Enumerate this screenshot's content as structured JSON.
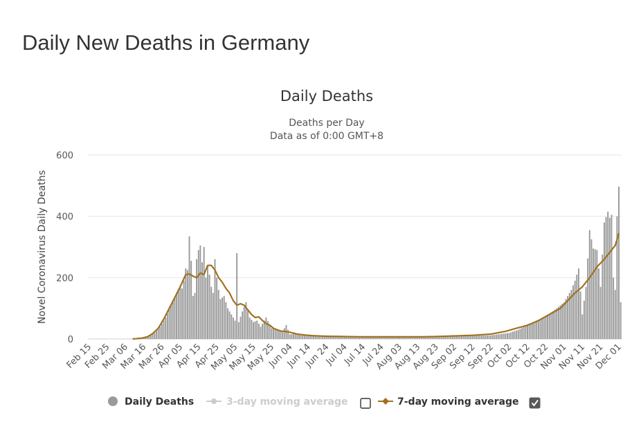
{
  "page": {
    "title": "Daily New Deaths in Germany"
  },
  "colors": {
    "bars": "#9a9a9a",
    "avg7": "#a0711f",
    "avg3_disabled": "#cccccc",
    "grid": "#e6e6e6",
    "text": "#333333"
  },
  "chart_data": {
    "type": "bar",
    "title": "Daily Deaths",
    "subtitle": [
      "Deaths per Day",
      "Data as of 0:00 GMT+8"
    ],
    "xlabel": "",
    "ylabel": "Novel Coronavirus Daily Deaths",
    "ylim": [
      0,
      600
    ],
    "yticks": [
      0,
      200,
      400,
      600
    ],
    "x_start": "2020-02-15",
    "x_end": "2020-12-02",
    "x_ticks": [
      "Feb 15",
      "Feb 25",
      "Mar 06",
      "Mar 16",
      "Mar 26",
      "Apr 05",
      "Apr 15",
      "Apr 25",
      "May 05",
      "May 15",
      "May 25",
      "Jun 04",
      "Jun 14",
      "Jun 24",
      "Jul 04",
      "Jul 14",
      "Jul 24",
      "Aug 03",
      "Aug 13",
      "Aug 23",
      "Sep 02",
      "Sep 12",
      "Sep 22",
      "Oct 02",
      "Oct 12",
      "Oct 22",
      "Nov 01",
      "Nov 11",
      "Nov 21",
      "Dec 01"
    ],
    "daily_anchors": [
      [
        0,
        0
      ],
      [
        20,
        0
      ],
      [
        25,
        1
      ],
      [
        30,
        3
      ],
      [
        33,
        8
      ],
      [
        36,
        20
      ],
      [
        39,
        40
      ],
      [
        42,
        70
      ],
      [
        45,
        110
      ],
      [
        48,
        150
      ],
      [
        50,
        175
      ],
      [
        51,
        165
      ],
      [
        52,
        190
      ],
      [
        53,
        230
      ],
      [
        54,
        225
      ],
      [
        55,
        335
      ],
      [
        56,
        255
      ],
      [
        57,
        140
      ],
      [
        58,
        150
      ],
      [
        59,
        260
      ],
      [
        60,
        290
      ],
      [
        61,
        305
      ],
      [
        62,
        250
      ],
      [
        63,
        300
      ],
      [
        64,
        200
      ],
      [
        65,
        240
      ],
      [
        66,
        210
      ],
      [
        67,
        170
      ],
      [
        68,
        150
      ],
      [
        69,
        260
      ],
      [
        70,
        200
      ],
      [
        71,
        160
      ],
      [
        72,
        130
      ],
      [
        74,
        140
      ],
      [
        76,
        100
      ],
      [
        78,
        80
      ],
      [
        80,
        60
      ],
      [
        81,
        280
      ],
      [
        82,
        55
      ],
      [
        84,
        90
      ],
      [
        86,
        120
      ],
      [
        88,
        70
      ],
      [
        90,
        55
      ],
      [
        92,
        60
      ],
      [
        94,
        40
      ],
      [
        97,
        70
      ],
      [
        100,
        35
      ],
      [
        103,
        30
      ],
      [
        106,
        25
      ],
      [
        108,
        45
      ],
      [
        110,
        15
      ],
      [
        113,
        18
      ],
      [
        116,
        12
      ],
      [
        120,
        10
      ],
      [
        130,
        8
      ],
      [
        140,
        7
      ],
      [
        150,
        6
      ],
      [
        160,
        6
      ],
      [
        170,
        6
      ],
      [
        180,
        7
      ],
      [
        190,
        6
      ],
      [
        200,
        8
      ],
      [
        210,
        10
      ],
      [
        220,
        12
      ],
      [
        230,
        20
      ],
      [
        235,
        30
      ],
      [
        240,
        45
      ],
      [
        245,
        60
      ],
      [
        250,
        75
      ],
      [
        255,
        95
      ],
      [
        260,
        120
      ],
      [
        264,
        160
      ],
      [
        266,
        190
      ],
      [
        268,
        230
      ],
      [
        270,
        80
      ],
      [
        272,
        170
      ],
      [
        274,
        355
      ],
      [
        276,
        295
      ],
      [
        278,
        290
      ],
      [
        280,
        170
      ],
      [
        282,
        380
      ],
      [
        284,
        415
      ],
      [
        285,
        395
      ],
      [
        286,
        405
      ],
      [
        287,
        200
      ],
      [
        288,
        160
      ],
      [
        289,
        400
      ],
      [
        290,
        497
      ],
      [
        291,
        120
      ]
    ],
    "avg3": [],
    "avg7_anchors": [
      [
        0,
        0
      ],
      [
        23,
        0
      ],
      [
        26,
        1
      ],
      [
        29,
        3
      ],
      [
        32,
        7
      ],
      [
        35,
        18
      ],
      [
        38,
        35
      ],
      [
        41,
        65
      ],
      [
        44,
        100
      ],
      [
        47,
        135
      ],
      [
        50,
        170
      ],
      [
        53,
        210
      ],
      [
        55,
        212
      ],
      [
        57,
        205
      ],
      [
        59,
        200
      ],
      [
        61,
        215
      ],
      [
        63,
        210
      ],
      [
        65,
        240
      ],
      [
        67,
        240
      ],
      [
        69,
        225
      ],
      [
        71,
        200
      ],
      [
        73,
        185
      ],
      [
        75,
        165
      ],
      [
        77,
        150
      ],
      [
        79,
        125
      ],
      [
        81,
        110
      ],
      [
        83,
        115
      ],
      [
        85,
        110
      ],
      [
        87,
        95
      ],
      [
        89,
        80
      ],
      [
        91,
        70
      ],
      [
        93,
        72
      ],
      [
        95,
        60
      ],
      [
        97,
        50
      ],
      [
        99,
        45
      ],
      [
        101,
        35
      ],
      [
        103,
        30
      ],
      [
        105,
        26
      ],
      [
        107,
        25
      ],
      [
        110,
        22
      ],
      [
        114,
        16
      ],
      [
        118,
        13
      ],
      [
        122,
        11
      ],
      [
        130,
        9
      ],
      [
        140,
        8
      ],
      [
        150,
        7
      ],
      [
        160,
        7
      ],
      [
        170,
        7
      ],
      [
        180,
        7
      ],
      [
        190,
        8
      ],
      [
        200,
        10
      ],
      [
        210,
        12
      ],
      [
        220,
        16
      ],
      [
        228,
        25
      ],
      [
        234,
        35
      ],
      [
        240,
        45
      ],
      [
        246,
        60
      ],
      [
        252,
        80
      ],
      [
        258,
        100
      ],
      [
        262,
        125
      ],
      [
        266,
        150
      ],
      [
        270,
        170
      ],
      [
        274,
        200
      ],
      [
        278,
        235
      ],
      [
        282,
        260
      ],
      [
        286,
        290
      ],
      [
        288,
        305
      ],
      [
        290,
        345
      ]
    ],
    "legend": [
      {
        "label": "Daily Deaths",
        "enabled": true
      },
      {
        "label": "3-day moving average",
        "enabled": false
      },
      {
        "label": "7-day moving average",
        "enabled": true,
        "checked": true
      }
    ],
    "legend_checkboxes": [
      false,
      true
    ]
  }
}
